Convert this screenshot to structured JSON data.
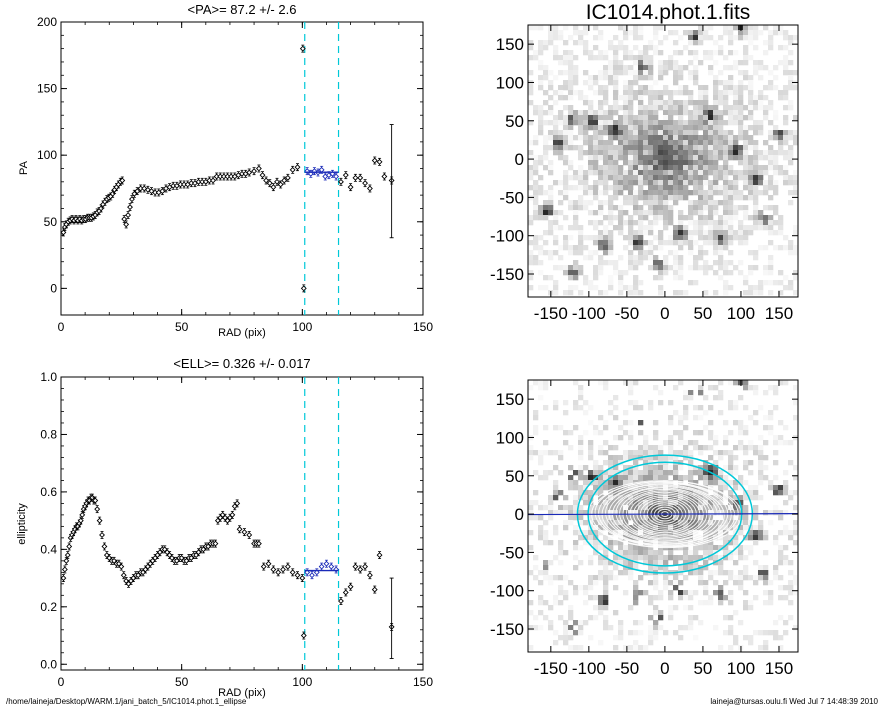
{
  "footer": {
    "path": "/home/laineja/Desktop/WARM.1/jani_batch_5/IC1014.phot.1_ellipse",
    "user_stamp": "laineja@tursas.oulu.fi  Wed Jul  7 14:48:39 2010"
  },
  "colors": {
    "guide": "#00c8d8",
    "fit": "#1a2ab8",
    "marker": "#000000"
  },
  "chart_data": [
    {
      "type": "scatter",
      "title": "<PA>=  87.2 +/-   2.6",
      "xlabel": "RAD (pix)",
      "ylabel": "PA",
      "xlim": [
        0,
        150
      ],
      "ylim": [
        -20,
        200
      ],
      "xticks": [
        0,
        50,
        100,
        150
      ],
      "yticks": [
        0,
        50,
        100,
        150,
        200
      ],
      "guides_x": [
        101,
        115
      ],
      "mean_line": {
        "x": [
          101,
          115
        ],
        "y": 87.2
      },
      "points": [
        [
          1,
          42
        ],
        [
          1.6,
          46
        ],
        [
          2.2,
          48
        ],
        [
          3,
          50
        ],
        [
          3.8,
          51
        ],
        [
          4.6,
          52
        ],
        [
          5.4,
          51
        ],
        [
          6.2,
          52
        ],
        [
          7,
          51
        ],
        [
          7.8,
          52
        ],
        [
          8.6,
          51
        ],
        [
          9.4,
          52
        ],
        [
          10.2,
          52
        ],
        [
          11,
          53
        ],
        [
          11.8,
          53
        ],
        [
          12.6,
          53
        ],
        [
          13.4,
          54
        ],
        [
          14.2,
          55
        ],
        [
          15,
          57
        ],
        [
          15.8,
          58
        ],
        [
          16.6,
          60
        ],
        [
          17.4,
          63
        ],
        [
          18.2,
          65
        ],
        [
          19,
          67
        ],
        [
          19.8,
          68
        ],
        [
          20.6,
          69
        ],
        [
          21.4,
          71
        ],
        [
          22.2,
          74
        ],
        [
          23,
          76
        ],
        [
          23.8,
          78
        ],
        [
          24.6,
          80
        ],
        [
          25.4,
          81
        ],
        [
          26.2,
          52
        ],
        [
          27,
          48
        ],
        [
          27.8,
          55
        ],
        [
          28.6,
          61
        ],
        [
          29.4,
          67
        ],
        [
          30.4,
          71
        ],
        [
          31.6,
          73
        ],
        [
          33,
          75
        ],
        [
          34.5,
          75
        ],
        [
          36,
          74
        ],
        [
          37.5,
          73
        ],
        [
          39,
          72
        ],
        [
          40.5,
          72
        ],
        [
          42,
          73
        ],
        [
          43.5,
          75
        ],
        [
          45,
          76
        ],
        [
          46.5,
          77
        ],
        [
          48,
          77
        ],
        [
          49.5,
          78
        ],
        [
          51,
          78
        ],
        [
          52.5,
          78
        ],
        [
          54,
          79
        ],
        [
          55.5,
          79
        ],
        [
          57,
          80
        ],
        [
          58.5,
          80
        ],
        [
          60,
          80
        ],
        [
          61.5,
          81
        ],
        [
          63,
          81
        ],
        [
          64.5,
          84
        ],
        [
          66,
          84
        ],
        [
          67.5,
          84
        ],
        [
          69,
          84
        ],
        [
          70.5,
          84
        ],
        [
          72,
          84
        ],
        [
          73.5,
          85
        ],
        [
          75,
          86
        ],
        [
          76.5,
          86
        ],
        [
          78,
          87
        ],
        [
          80,
          88
        ],
        [
          82,
          90
        ],
        [
          83.5,
          85
        ],
        [
          85,
          81
        ],
        [
          86.5,
          79
        ],
        [
          88,
          76
        ],
        [
          89.5,
          80
        ],
        [
          91,
          78
        ],
        [
          92.5,
          81
        ],
        [
          94,
          83
        ],
        [
          96,
          89
        ],
        [
          98,
          91
        ],
        [
          100.2,
          180
        ],
        [
          100.6,
          0
        ],
        [
          102,
          88
        ],
        [
          103.5,
          86
        ],
        [
          105,
          88
        ],
        [
          106.5,
          87
        ],
        [
          108,
          89
        ],
        [
          109.5,
          84
        ],
        [
          111,
          85
        ],
        [
          112.5,
          86
        ],
        [
          114,
          84
        ],
        [
          116,
          80
        ],
        [
          118,
          85
        ],
        [
          120,
          76
        ],
        [
          122,
          83
        ],
        [
          124,
          83
        ],
        [
          126,
          79
        ],
        [
          128,
          75
        ],
        [
          130,
          96
        ],
        [
          132,
          95
        ],
        [
          134,
          84
        ],
        [
          137,
          81
        ]
      ],
      "error_bars": [
        {
          "x": 137,
          "low": 38,
          "high": 123
        }
      ]
    },
    {
      "type": "image",
      "title": "IC1014.phot.1.fits",
      "xlim": [
        -180,
        175
      ],
      "ylim": [
        -180,
        175
      ],
      "xticks": [
        -150,
        -100,
        -50,
        0,
        50,
        100,
        150
      ],
      "yticks": [
        -150,
        -100,
        -50,
        0,
        50,
        100,
        150
      ]
    },
    {
      "type": "scatter",
      "title": "<ELL>= 0.326 +/-  0.017",
      "xlabel": "RAD (pix)",
      "ylabel": "ellipticity",
      "xlim": [
        0,
        150
      ],
      "ylim": [
        -0.02,
        1.0
      ],
      "xticks": [
        0,
        50,
        100,
        150
      ],
      "yticks": [
        "0.0",
        "0.2",
        "0.4",
        "0.6",
        "0.8",
        "1.0"
      ],
      "guides_x": [
        101,
        115
      ],
      "mean_line": {
        "x": [
          101,
          115
        ],
        "y": 0.326
      },
      "points": [
        [
          1,
          0.3
        ],
        [
          1.6,
          0.33
        ],
        [
          2.2,
          0.36
        ],
        [
          2.8,
          0.38
        ],
        [
          3.4,
          0.41
        ],
        [
          4,
          0.44
        ],
        [
          4.6,
          0.45
        ],
        [
          5.2,
          0.46
        ],
        [
          5.8,
          0.47
        ],
        [
          6.4,
          0.48
        ],
        [
          7,
          0.48
        ],
        [
          7.6,
          0.49
        ],
        [
          8.2,
          0.5
        ],
        [
          8.8,
          0.52
        ],
        [
          9.4,
          0.54
        ],
        [
          10,
          0.55
        ],
        [
          10.6,
          0.56
        ],
        [
          11.2,
          0.57
        ],
        [
          11.8,
          0.57
        ],
        [
          12.4,
          0.58
        ],
        [
          13,
          0.58
        ],
        [
          13.6,
          0.57
        ],
        [
          14.2,
          0.57
        ],
        [
          15,
          0.54
        ],
        [
          16,
          0.5
        ],
        [
          17,
          0.45
        ],
        [
          18,
          0.41
        ],
        [
          19,
          0.38
        ],
        [
          20,
          0.37
        ],
        [
          21,
          0.36
        ],
        [
          22,
          0.36
        ],
        [
          23,
          0.35
        ],
        [
          24,
          0.35
        ],
        [
          25,
          0.34
        ],
        [
          26,
          0.31
        ],
        [
          27,
          0.29
        ],
        [
          28,
          0.28
        ],
        [
          29,
          0.29
        ],
        [
          30,
          0.3
        ],
        [
          31,
          0.31
        ],
        [
          32,
          0.31
        ],
        [
          33,
          0.32
        ],
        [
          34,
          0.32
        ],
        [
          35,
          0.33
        ],
        [
          36,
          0.34
        ],
        [
          37,
          0.35
        ],
        [
          38,
          0.36
        ],
        [
          39,
          0.37
        ],
        [
          40,
          0.38
        ],
        [
          41,
          0.39
        ],
        [
          42,
          0.4
        ],
        [
          43,
          0.4
        ],
        [
          44,
          0.39
        ],
        [
          45,
          0.38
        ],
        [
          46,
          0.37
        ],
        [
          47,
          0.36
        ],
        [
          48,
          0.36
        ],
        [
          49,
          0.37
        ],
        [
          50,
          0.37
        ],
        [
          51,
          0.36
        ],
        [
          52,
          0.36
        ],
        [
          53,
          0.37
        ],
        [
          54,
          0.37
        ],
        [
          55,
          0.38
        ],
        [
          56,
          0.38
        ],
        [
          57,
          0.39
        ],
        [
          58,
          0.4
        ],
        [
          59,
          0.4
        ],
        [
          60,
          0.41
        ],
        [
          61,
          0.41
        ],
        [
          62,
          0.42
        ],
        [
          63,
          0.42
        ],
        [
          64,
          0.42
        ],
        [
          65,
          0.5
        ],
        [
          66,
          0.51
        ],
        [
          67,
          0.52
        ],
        [
          68,
          0.51
        ],
        [
          69,
          0.5
        ],
        [
          70,
          0.51
        ],
        [
          71,
          0.52
        ],
        [
          72,
          0.55
        ],
        [
          73,
          0.56
        ],
        [
          74,
          0.47
        ],
        [
          76,
          0.46
        ],
        [
          78,
          0.45
        ],
        [
          80,
          0.42
        ],
        [
          81,
          0.42
        ],
        [
          82,
          0.42
        ],
        [
          84,
          0.34
        ],
        [
          86,
          0.35
        ],
        [
          88,
          0.33
        ],
        [
          90,
          0.32
        ],
        [
          92,
          0.33
        ],
        [
          94,
          0.34
        ],
        [
          96,
          0.32
        ],
        [
          98,
          0.31
        ],
        [
          100,
          0.3
        ],
        [
          100.6,
          0.1
        ],
        [
          102,
          0.32
        ],
        [
          104,
          0.31
        ],
        [
          106,
          0.32
        ],
        [
          108,
          0.34
        ],
        [
          110,
          0.35
        ],
        [
          112,
          0.34
        ],
        [
          114,
          0.33
        ],
        [
          116,
          0.22
        ],
        [
          118,
          0.25
        ],
        [
          120,
          0.27
        ],
        [
          122,
          0.34
        ],
        [
          124,
          0.33
        ],
        [
          126,
          0.34
        ],
        [
          128,
          0.31
        ],
        [
          130,
          0.26
        ],
        [
          132,
          0.38
        ],
        [
          137,
          0.13
        ]
      ],
      "error_bars": [
        {
          "x": 137,
          "low": 0.02,
          "high": 0.3
        }
      ]
    },
    {
      "type": "image",
      "title": "",
      "xlim": [
        -180,
        175
      ],
      "ylim": [
        -180,
        175
      ],
      "xticks": [
        -150,
        -100,
        -50,
        0,
        50,
        100,
        150
      ],
      "yticks": [
        -150,
        -100,
        -50,
        0,
        50,
        100,
        150
      ],
      "overlay": {
        "position_angle_deg": 87.2,
        "ellipticity_outer": 0.326,
        "outer_semi_major": 115,
        "inner_semi_major": 101
      }
    }
  ]
}
